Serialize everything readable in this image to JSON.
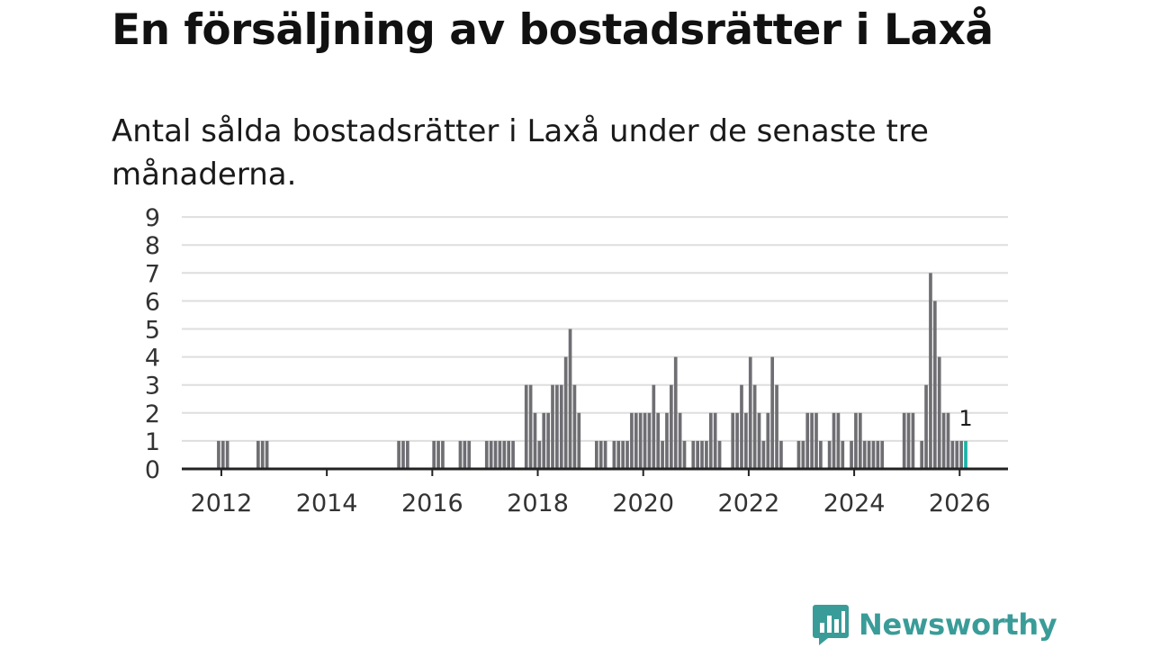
{
  "title": "En försäljning av bostadsrätter i Laxå",
  "subtitle": "Antal sålda bostadsrätter i Laxå under de senaste tre månaderna.",
  "brand": {
    "name": "Newsworthy",
    "color": "#3a9c98",
    "icon": "newsworthy-logo-icon"
  },
  "colors": {
    "bar": "#6e6e73",
    "highlight": "#19b3a8",
    "grid": "#dedede",
    "axis": "#222222"
  },
  "chart_data": {
    "type": "bar",
    "title": "En försäljning av bostadsrätter i Laxå",
    "xlabel": "",
    "ylabel": "",
    "ylim": [
      0,
      9
    ],
    "yticks": [
      "0",
      "1",
      "2",
      "3",
      "4",
      "5",
      "6",
      "7",
      "8",
      "9"
    ],
    "xticks": [
      {
        "year": 2012,
        "label": "2012"
      },
      {
        "year": 2014,
        "label": "2014"
      },
      {
        "year": 2016,
        "label": "2016"
      },
      {
        "year": 2018,
        "label": "2018"
      },
      {
        "year": 2020,
        "label": "2020"
      },
      {
        "year": 2022,
        "label": "2022"
      },
      {
        "year": 2024,
        "label": "2024"
      },
      {
        "year": 2026,
        "label": "2026"
      }
    ],
    "x_start": "2011-04",
    "x_end": "2026-12",
    "series": [
      {
        "name": "Sålda bostadsrätter",
        "points": [
          [
            "2011-12",
            1
          ],
          [
            "2012-01",
            1
          ],
          [
            "2012-02",
            1
          ],
          [
            "2012-09",
            1
          ],
          [
            "2012-10",
            1
          ],
          [
            "2012-11",
            1
          ],
          [
            "2015-05",
            1
          ],
          [
            "2015-06",
            1
          ],
          [
            "2015-07",
            1
          ],
          [
            "2016-01",
            1
          ],
          [
            "2016-02",
            1
          ],
          [
            "2016-03",
            1
          ],
          [
            "2016-07",
            1
          ],
          [
            "2016-08",
            1
          ],
          [
            "2016-09",
            1
          ],
          [
            "2017-01",
            1
          ],
          [
            "2017-02",
            1
          ],
          [
            "2017-03",
            1
          ],
          [
            "2017-04",
            1
          ],
          [
            "2017-05",
            1
          ],
          [
            "2017-06",
            1
          ],
          [
            "2017-07",
            1
          ],
          [
            "2017-10",
            3
          ],
          [
            "2017-11",
            3
          ],
          [
            "2017-12",
            2
          ],
          [
            "2018-01",
            1
          ],
          [
            "2018-02",
            2
          ],
          [
            "2018-03",
            2
          ],
          [
            "2018-04",
            3
          ],
          [
            "2018-05",
            3
          ],
          [
            "2018-06",
            3
          ],
          [
            "2018-07",
            4
          ],
          [
            "2018-08",
            5
          ],
          [
            "2018-09",
            3
          ],
          [
            "2018-10",
            2
          ],
          [
            "2019-02",
            1
          ],
          [
            "2019-03",
            1
          ],
          [
            "2019-04",
            1
          ],
          [
            "2019-06",
            1
          ],
          [
            "2019-07",
            1
          ],
          [
            "2019-08",
            1
          ],
          [
            "2019-09",
            1
          ],
          [
            "2019-10",
            2
          ],
          [
            "2019-11",
            2
          ],
          [
            "2019-12",
            2
          ],
          [
            "2020-01",
            2
          ],
          [
            "2020-02",
            2
          ],
          [
            "2020-03",
            3
          ],
          [
            "2020-04",
            2
          ],
          [
            "2020-05",
            1
          ],
          [
            "2020-06",
            2
          ],
          [
            "2020-07",
            3
          ],
          [
            "2020-08",
            4
          ],
          [
            "2020-09",
            2
          ],
          [
            "2020-10",
            1
          ],
          [
            "2020-12",
            1
          ],
          [
            "2021-01",
            1
          ],
          [
            "2021-02",
            1
          ],
          [
            "2021-03",
            1
          ],
          [
            "2021-04",
            2
          ],
          [
            "2021-05",
            2
          ],
          [
            "2021-06",
            1
          ],
          [
            "2021-09",
            2
          ],
          [
            "2021-10",
            2
          ],
          [
            "2021-11",
            3
          ],
          [
            "2021-12",
            2
          ],
          [
            "2022-01",
            4
          ],
          [
            "2022-02",
            3
          ],
          [
            "2022-03",
            2
          ],
          [
            "2022-04",
            1
          ],
          [
            "2022-05",
            2
          ],
          [
            "2022-06",
            4
          ],
          [
            "2022-07",
            3
          ],
          [
            "2022-08",
            1
          ],
          [
            "2022-12",
            1
          ],
          [
            "2023-01",
            1
          ],
          [
            "2023-02",
            2
          ],
          [
            "2023-03",
            2
          ],
          [
            "2023-04",
            2
          ],
          [
            "2023-05",
            1
          ],
          [
            "2023-07",
            1
          ],
          [
            "2023-08",
            2
          ],
          [
            "2023-09",
            2
          ],
          [
            "2023-10",
            1
          ],
          [
            "2023-12",
            1
          ],
          [
            "2024-01",
            2
          ],
          [
            "2024-02",
            2
          ],
          [
            "2024-03",
            1
          ],
          [
            "2024-04",
            1
          ],
          [
            "2024-05",
            1
          ],
          [
            "2024-06",
            1
          ],
          [
            "2024-07",
            1
          ],
          [
            "2024-12",
            2
          ],
          [
            "2025-01",
            2
          ],
          [
            "2025-02",
            2
          ],
          [
            "2025-04",
            1
          ],
          [
            "2025-05",
            3
          ],
          [
            "2025-06",
            7
          ],
          [
            "2025-07",
            6
          ],
          [
            "2025-08",
            4
          ],
          [
            "2025-09",
            2
          ],
          [
            "2025-10",
            2
          ],
          [
            "2025-11",
            1
          ],
          [
            "2025-12",
            1
          ],
          [
            "2026-01",
            1
          ],
          [
            "2026-02",
            1
          ]
        ]
      }
    ],
    "highlight": {
      "month": "2026-02",
      "value": 1,
      "label": "1"
    }
  }
}
